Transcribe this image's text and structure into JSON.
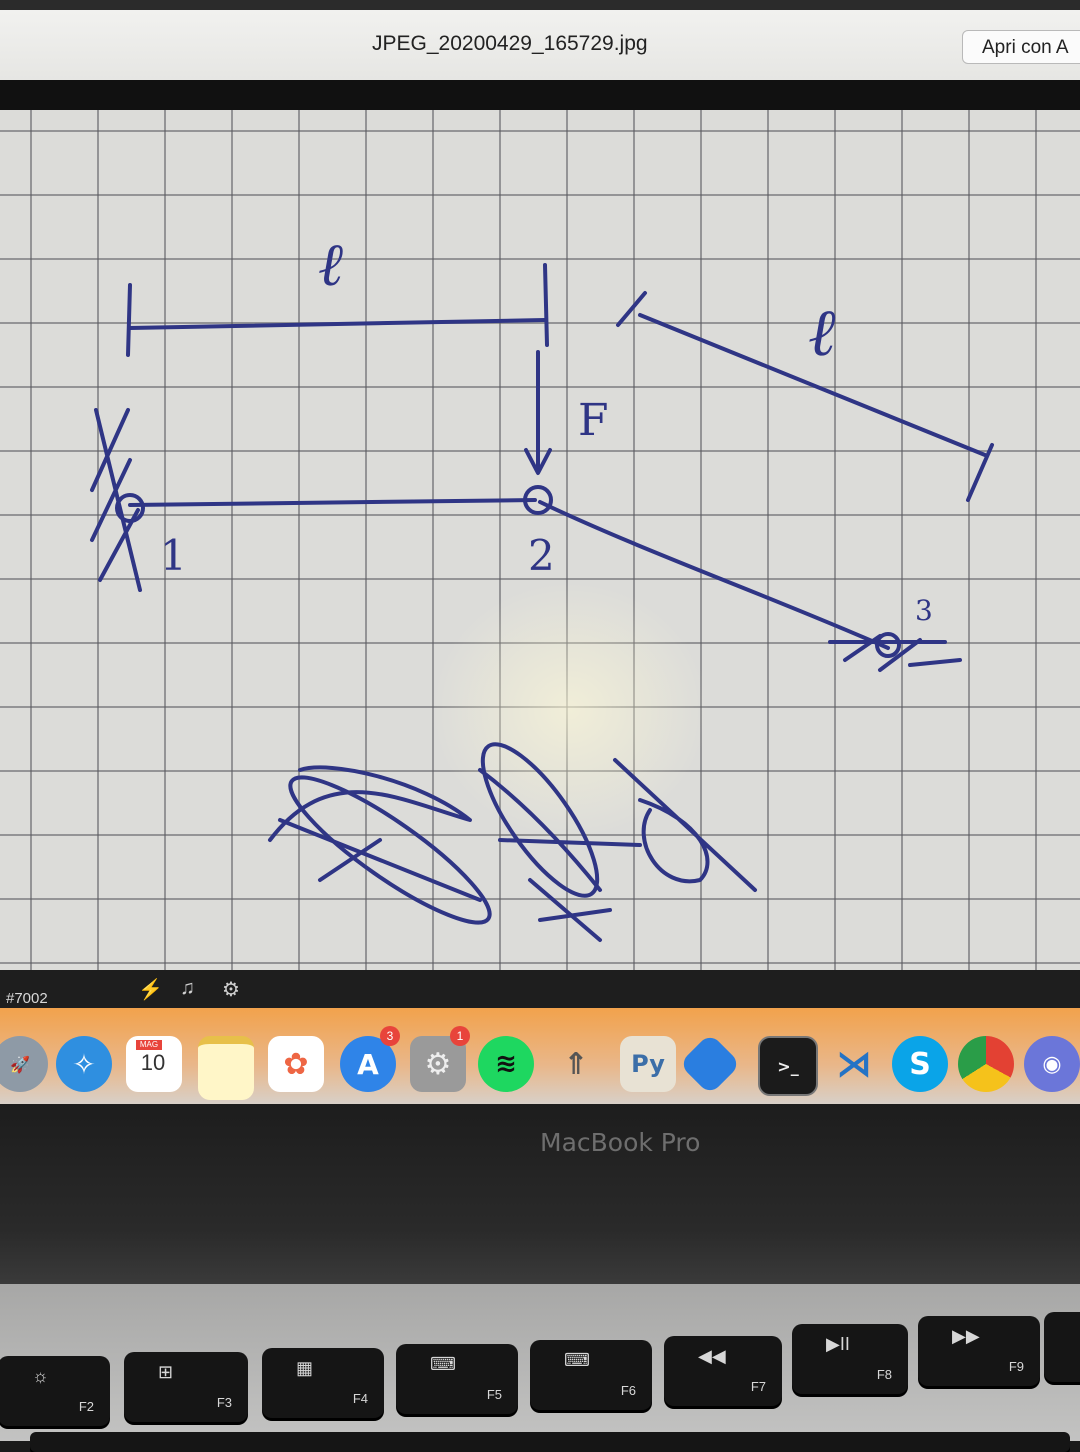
{
  "window": {
    "file_title": "JPEG_20200429_165729.jpg",
    "open_with_label": "Apri con A"
  },
  "sketch": {
    "length_label_top": "ℓ",
    "length_label_right": "ℓ",
    "force_label": "F",
    "node_1": "1",
    "node_2": "2",
    "node_3": "3"
  },
  "statusbar": {
    "channel_label": "#7002"
  },
  "dock": {
    "calendar_month": "MAG",
    "calendar_day": "10",
    "appstore_badge": "3",
    "prefs_badge": "1",
    "icons": [
      "launchpad-icon",
      "safari-icon",
      "calendar-icon",
      "notes-icon",
      "photos-icon",
      "app-store-icon",
      "system-preferences-icon",
      "spotify-icon",
      "rocket-icon",
      "python-launcher-icon",
      "bluetooth-icon",
      "terminal-icon",
      "vscode-icon",
      "skype-icon",
      "chrome-icon",
      "discord-icon"
    ]
  },
  "laptop": {
    "brand": "MacBook Pro"
  },
  "keyboard": {
    "keys": [
      {
        "fn": "F2",
        "glyph": "☼"
      },
      {
        "fn": "F3",
        "glyph": "⊞"
      },
      {
        "fn": "F4",
        "glyph": "▦"
      },
      {
        "fn": "F5",
        "glyph": "⌨"
      },
      {
        "fn": "F6",
        "glyph": "⌨"
      },
      {
        "fn": "F7",
        "glyph": "◀◀"
      },
      {
        "fn": "F8",
        "glyph": "▶II"
      },
      {
        "fn": "F9",
        "glyph": "▶▶"
      }
    ]
  }
}
